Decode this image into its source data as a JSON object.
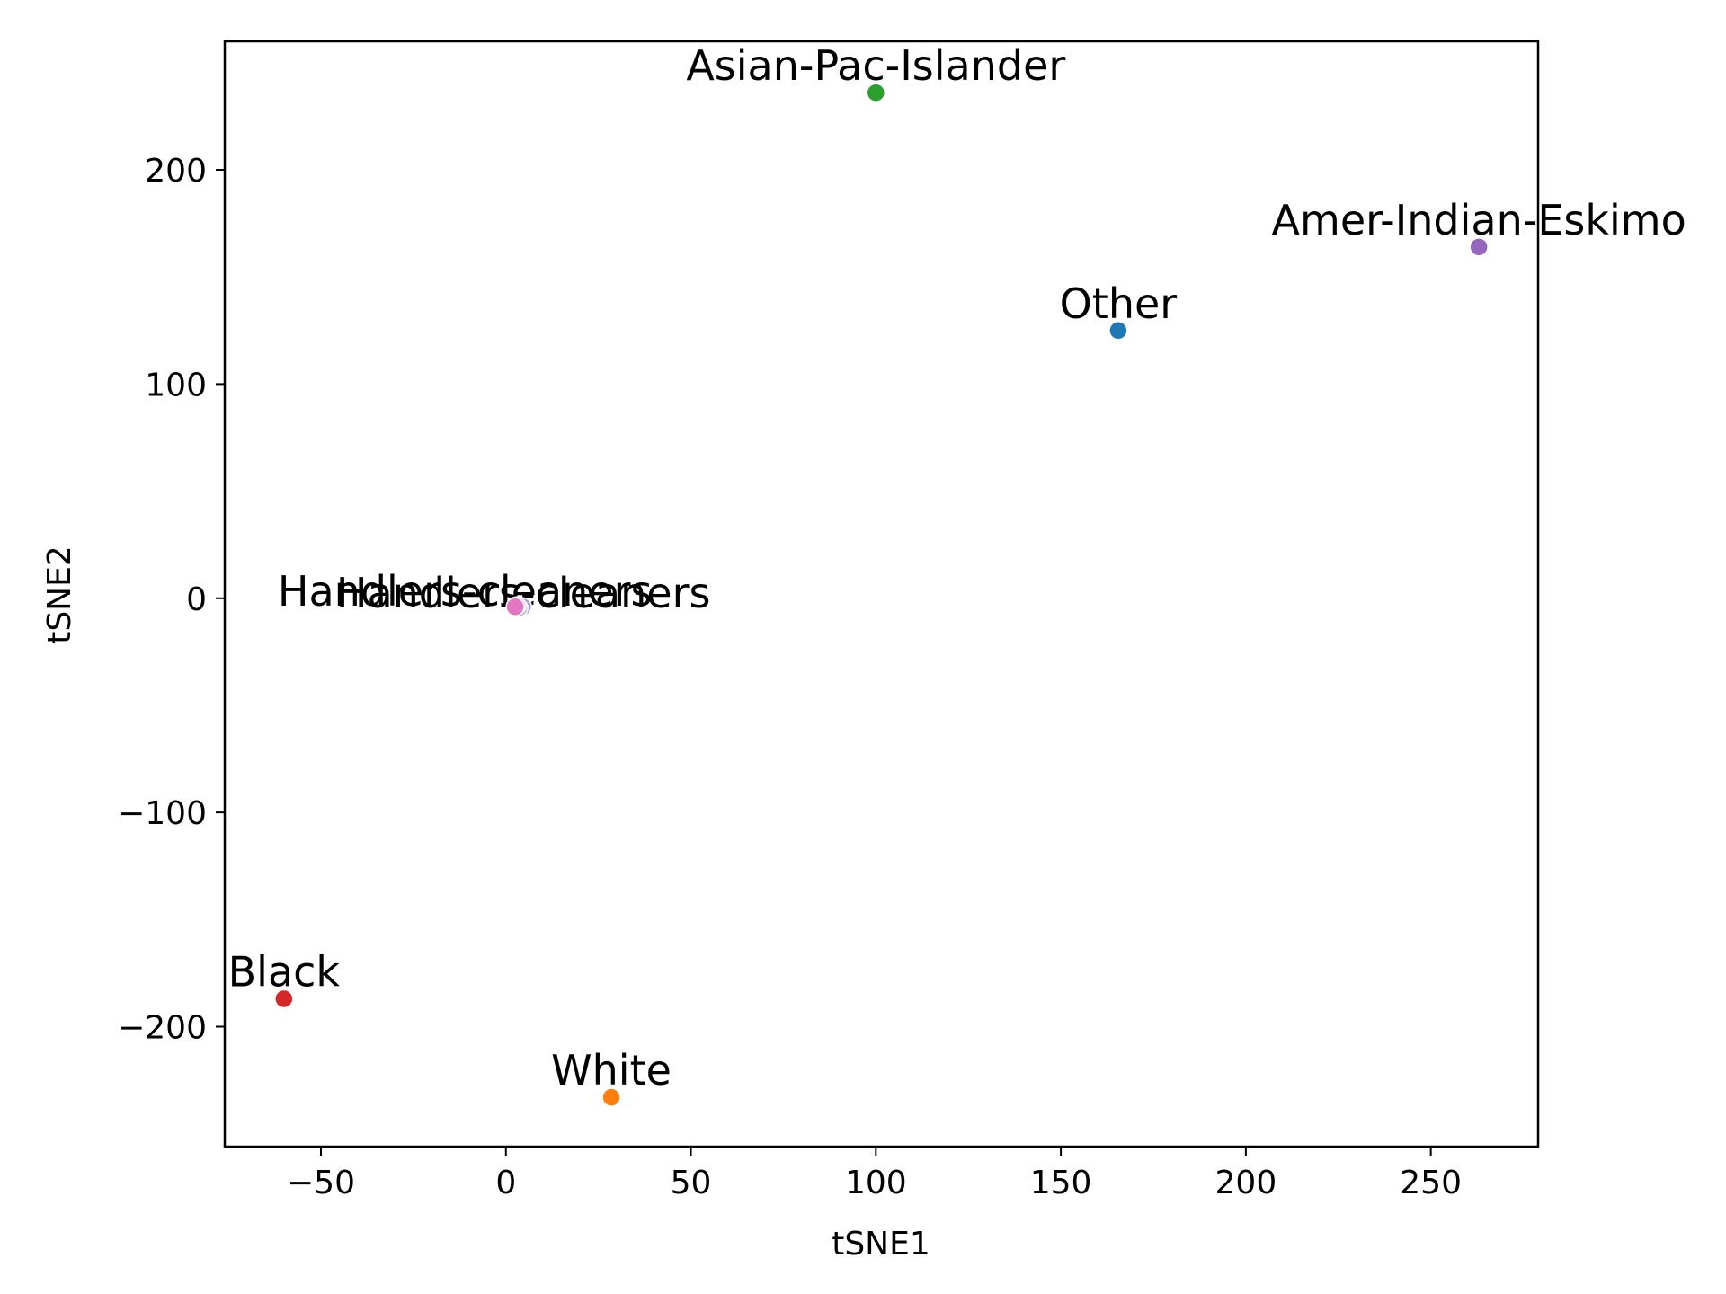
{
  "chart_data": {
    "type": "scatter",
    "title": "",
    "xlabel": "tSNE1",
    "ylabel": "tSNE2",
    "xlim": [
      -76,
      279
    ],
    "ylim": [
      -256,
      260
    ],
    "xticks": [
      -50,
      0,
      50,
      100,
      150,
      200,
      250
    ],
    "yticks": [
      -200,
      -100,
      0,
      100,
      200
    ],
    "xtick_labels": [
      "−50",
      "0",
      "50",
      "100",
      "150",
      "200",
      "250"
    ],
    "ytick_labels": [
      "−200",
      "−100",
      "0",
      "100",
      "200"
    ],
    "grid": false,
    "points": [
      {
        "label": "Asian-Pac-Islander",
        "x": 100,
        "y": 236,
        "color": "#2ca02c"
      },
      {
        "label": "Amer-Indian-Eskimo",
        "x": 263,
        "y": 164,
        "color": "#9467bd"
      },
      {
        "label": "Other",
        "x": 165.5,
        "y": 125,
        "color": "#1f77b4"
      },
      {
        "label": "Black",
        "x": -60,
        "y": -187,
        "color": "#d62728"
      },
      {
        "label": "White",
        "x": 28.5,
        "y": -233,
        "color": "#ff7f0e"
      }
    ],
    "cluster": {
      "description_label_text": "Handlers-cleaners",
      "points": [
        {
          "x": 4.5,
          "y": -4,
          "color": "#9c9ede"
        },
        {
          "x": 3.5,
          "y": -4.5,
          "color": "#c5b0d5"
        },
        {
          "x": 3.0,
          "y": -3.5,
          "color": "#f7b6d2"
        },
        {
          "x": 2.5,
          "y": -4,
          "color": "#e377c2"
        }
      ]
    }
  }
}
